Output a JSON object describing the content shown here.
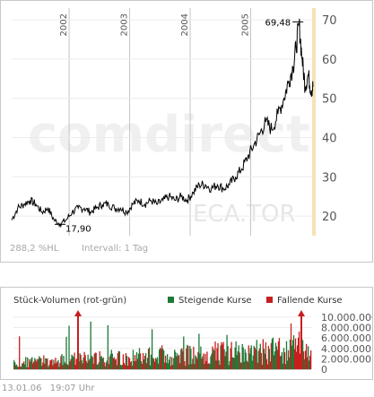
{
  "chart_data": [
    {
      "type": "line",
      "x_years": [
        "2002",
        "2003",
        "2004",
        "2005"
      ],
      "y_ticks": [
        20,
        30,
        40,
        50,
        60,
        70
      ],
      "ylim": [
        15,
        73
      ],
      "x_range": [
        2001.05,
        2006.03
      ],
      "series": [
        {
          "x": [
            2001.05,
            2001.15,
            2001.25,
            2001.35,
            2001.45,
            2001.55,
            2001.65,
            2001.75,
            2001.85,
            2001.95,
            2002.05,
            2002.15,
            2002.25,
            2002.35,
            2002.45,
            2002.55,
            2002.65,
            2002.75,
            2002.85,
            2002.95,
            2003.05,
            2003.15,
            2003.25,
            2003.35,
            2003.45,
            2003.55,
            2003.65,
            2003.75,
            2003.85,
            2003.95,
            2004.05,
            2004.15,
            2004.25,
            2004.35,
            2004.45,
            2004.55,
            2004.65,
            2004.75,
            2004.85,
            2004.95,
            2005.05,
            2005.15,
            2005.25,
            2005.35,
            2005.45,
            2005.55,
            2005.62,
            2005.7,
            2005.75,
            2005.8,
            2005.85,
            2005.9,
            2005.95,
            2006.0,
            2006.03
          ],
          "values": [
            19,
            22,
            23,
            24,
            23,
            21,
            22,
            19,
            18,
            19,
            21,
            22,
            22,
            21,
            22,
            23,
            23,
            22,
            22,
            21,
            23,
            24,
            23,
            24,
            23,
            24,
            25,
            24,
            25,
            24,
            26,
            28,
            28,
            27,
            28,
            27,
            28,
            30,
            32,
            35,
            38,
            41,
            44,
            42,
            46,
            50,
            54,
            58,
            63,
            69,
            60,
            53,
            56,
            52,
            53
          ]
        }
      ],
      "annotations": [
        {
          "label": "69,48",
          "x": 2005.78,
          "y": 69.48,
          "kind": "high"
        },
        {
          "label": "17,90",
          "x": 2001.85,
          "y": 17.9,
          "kind": "low"
        }
      ],
      "watermark": "comdirect",
      "ticker": "ECA.TOR",
      "stat": "288,2 %HL",
      "interval": "Intervall: 1 Tag"
    },
    {
      "type": "bar",
      "title": "Stück-Volumen (rot-grün)",
      "legend": [
        {
          "label": "Steigende Kurse",
          "color": "#1e7a36"
        },
        {
          "label": "Fallende Kurse",
          "color": "#c81e1e"
        }
      ],
      "y_ticks": [
        "10.000.000",
        "8.000.000",
        "6.000.000",
        "4.000.000",
        "2.000.000",
        "0"
      ],
      "ylim": [
        0,
        10500000
      ]
    }
  ],
  "colors": {
    "line": "#000000",
    "up": "#1e7a36",
    "down": "#c81e1e",
    "grid": "#c4c4c4",
    "highlight": "#f5e3b5"
  },
  "footer": {
    "date": "13.01.06",
    "time": "19:07 Uhr"
  }
}
